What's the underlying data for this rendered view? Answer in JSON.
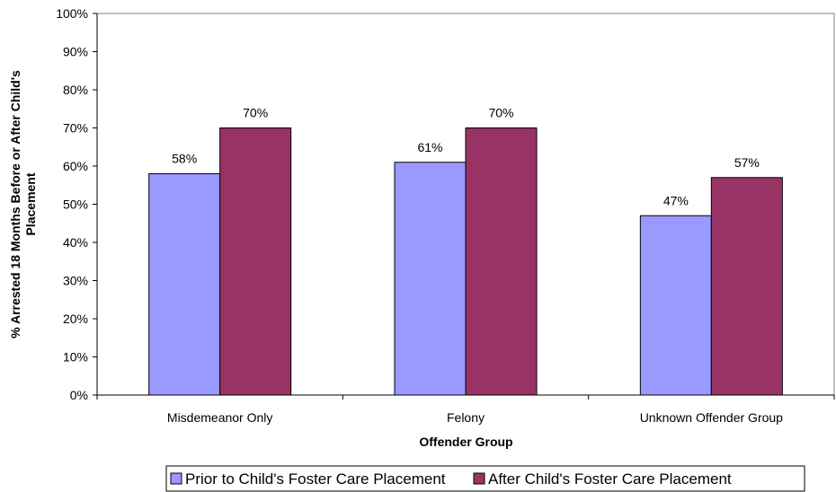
{
  "chart_data": {
    "type": "bar",
    "title": "",
    "categories": [
      "Misdemeanor Only",
      "Felony",
      "Unknown Offender Group"
    ],
    "series": [
      {
        "name": "Prior to Child's Foster Care Placement",
        "color": "#9999FF",
        "values": [
          58,
          61,
          47
        ],
        "labels": [
          "58%",
          "61%",
          "47%"
        ]
      },
      {
        "name": "After Child's Foster Care Placement",
        "color": "#993366",
        "values": [
          70,
          70,
          57
        ],
        "labels": [
          "70%",
          "70%",
          "57%"
        ]
      }
    ],
    "xlabel": "Offender Group",
    "ylabel_lines": [
      "% Arrested 18 Months Before or After Child's",
      "Placement"
    ],
    "ylim": [
      0,
      100
    ],
    "yticks": [
      "0%",
      "10%",
      "20%",
      "30%",
      "40%",
      "50%",
      "60%",
      "70%",
      "80%",
      "90%",
      "100%"
    ],
    "grid": false,
    "legend_position": "bottom"
  }
}
